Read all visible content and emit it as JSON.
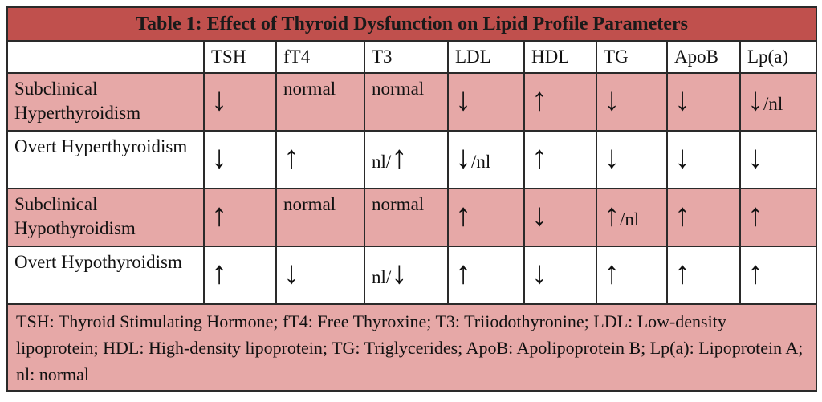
{
  "title": "Table 1: Effect of Thyroid Dysfunction on Lipid Profile Parameters",
  "table": {
    "columns": [
      "TSH",
      "fT4",
      "T3",
      "LDL",
      "HDL",
      "TG",
      "ApoB",
      "Lp(a)"
    ],
    "rows": [
      {
        "label": "Subclinical Hyperthyroidism",
        "cells": [
          "↓",
          "normal",
          "normal",
          "↓",
          "↑",
          "↓",
          "↓",
          "↓/nl"
        ]
      },
      {
        "label": "Overt Hyperthyroidism",
        "cells": [
          "↓",
          "↑",
          "nl/↑",
          "↓/nl",
          "↑",
          "↓",
          "↓",
          "↓"
        ]
      },
      {
        "label": "Subclinical Hypothyroidism",
        "cells": [
          "↑",
          "normal",
          "normal",
          "↑",
          "↓",
          "↑/nl",
          "↑",
          "↑"
        ]
      },
      {
        "label": "Overt Hypothyroidism",
        "cells": [
          "↑",
          "↓",
          "nl/↓",
          "↑",
          "↓",
          "↑",
          "↑",
          "↑"
        ]
      }
    ],
    "footnote": "TSH: Thyroid Stimulating Hormone; fT4: Free Thyroxine; T3: Triiodothyronine; LDL: Low-density lipoprotein; HDL: High-density lipoprotein; TG: Triglycerides; ApoB: Apolipoprotein B; Lp(a): Lipoprotein A; nl: normal"
  }
}
